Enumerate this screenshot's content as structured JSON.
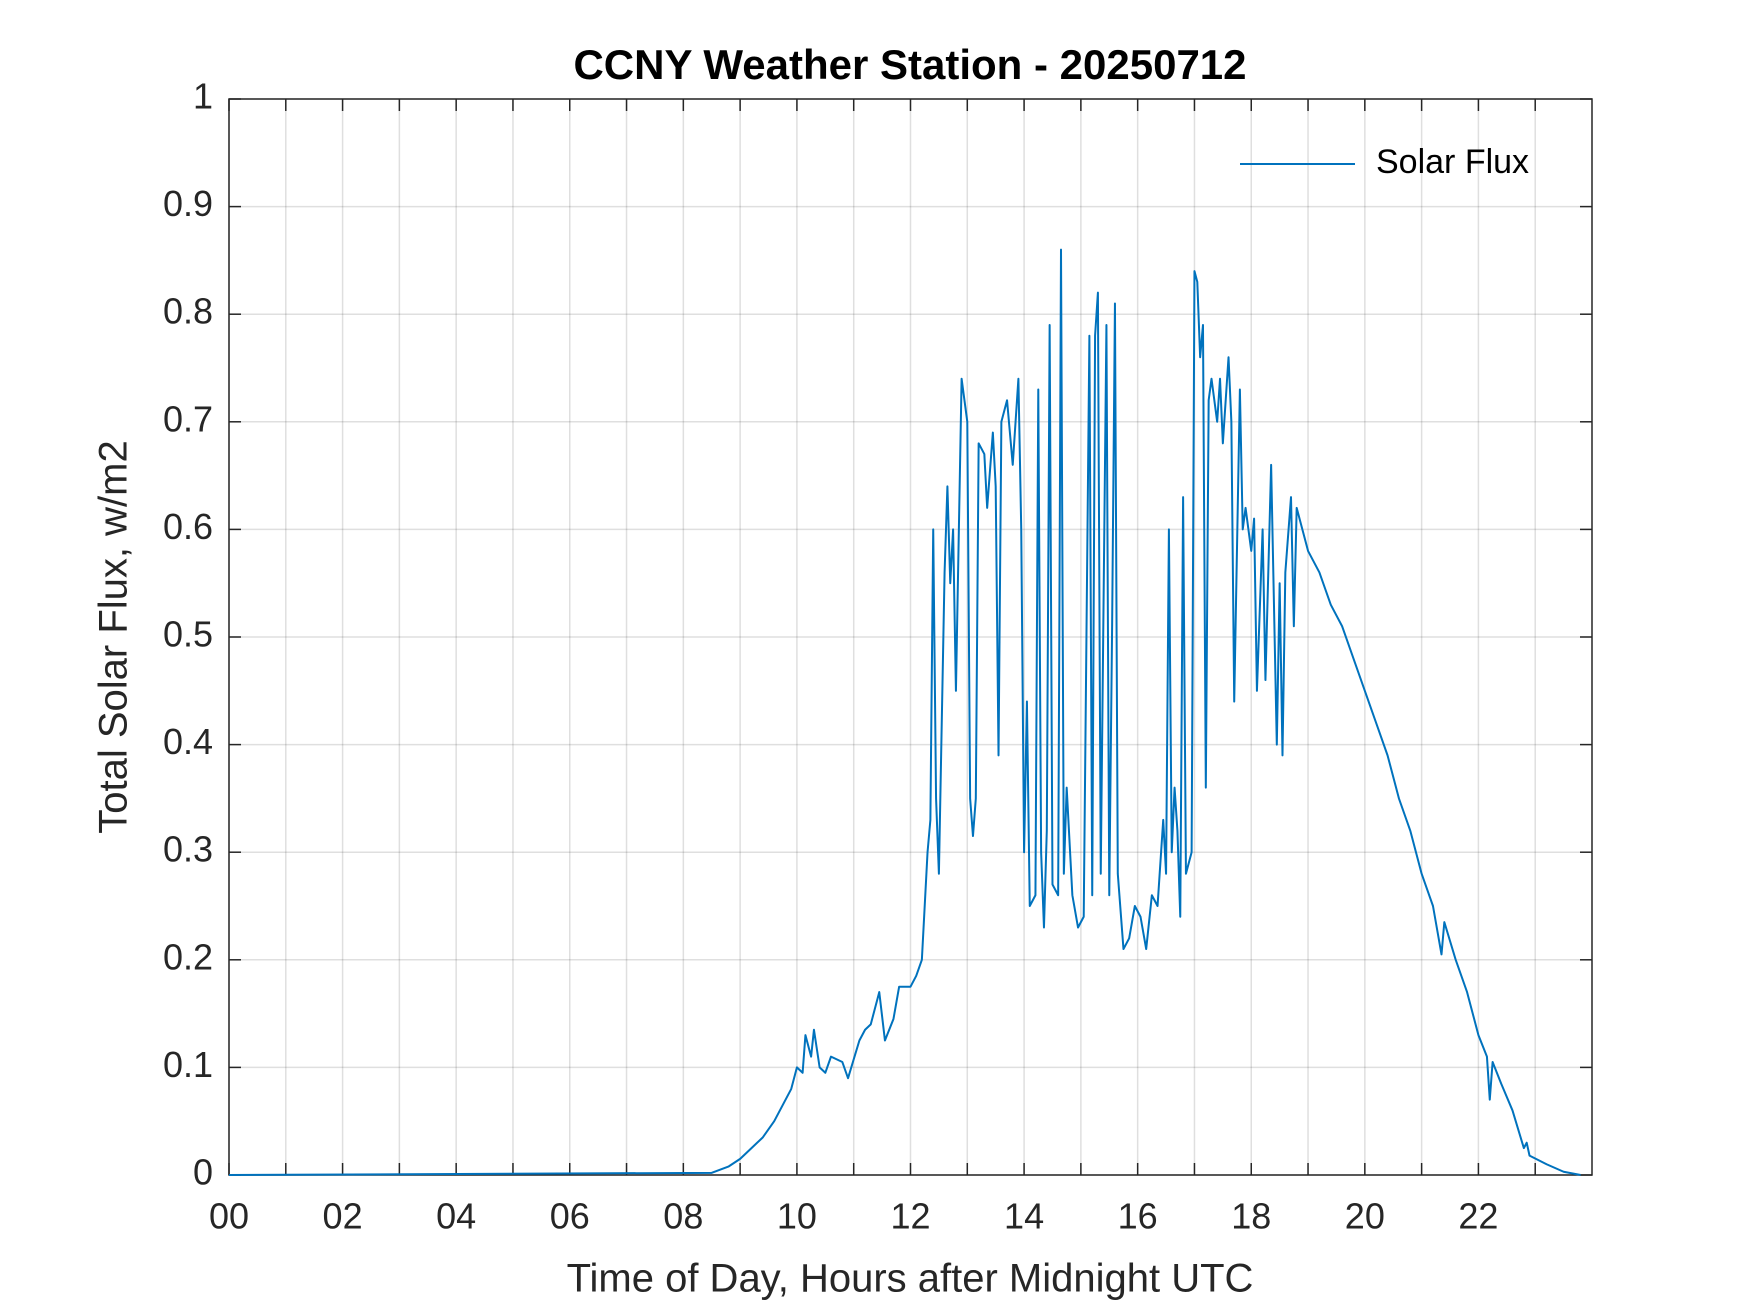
{
  "chart_data": {
    "type": "line",
    "title": "CCNY Weather Station - 20250712",
    "xlabel": "Time of Day, Hours after Midnight UTC",
    "ylabel": "Total Solar Flux, w/m2",
    "x": [
      0,
      8.5,
      8.8,
      9.0,
      9.2,
      9.4,
      9.6,
      9.8,
      9.9,
      10.0,
      10.1,
      10.15,
      10.25,
      10.3,
      10.4,
      10.5,
      10.6,
      10.8,
      10.9,
      11.1,
      11.2,
      11.3,
      11.45,
      11.55,
      11.7,
      11.8,
      12.0,
      12.1,
      12.2,
      12.3,
      12.35,
      12.4,
      12.45,
      12.5,
      12.6,
      12.65,
      12.7,
      12.75,
      12.8,
      12.9,
      13.0,
      13.05,
      13.1,
      13.15,
      13.2,
      13.3,
      13.35,
      13.45,
      13.5,
      13.55,
      13.6,
      13.7,
      13.8,
      13.9,
      13.95,
      14.0,
      14.05,
      14.1,
      14.2,
      14.25,
      14.3,
      14.35,
      14.4,
      14.45,
      14.5,
      14.6,
      14.65,
      14.7,
      14.75,
      14.85,
      14.95,
      15.05,
      15.15,
      15.2,
      15.25,
      15.3,
      15.35,
      15.45,
      15.5,
      15.55,
      15.6,
      15.65,
      15.75,
      15.85,
      15.95,
      16.05,
      16.15,
      16.25,
      16.35,
      16.45,
      16.5,
      16.55,
      16.6,
      16.65,
      16.7,
      16.75,
      16.8,
      16.85,
      16.95,
      17.0,
      17.05,
      17.1,
      17.15,
      17.2,
      17.25,
      17.3,
      17.4,
      17.45,
      17.5,
      17.6,
      17.65,
      17.7,
      17.8,
      17.85,
      17.9,
      18.0,
      18.05,
      18.1,
      18.2,
      18.25,
      18.35,
      18.45,
      18.5,
      18.55,
      18.6,
      18.7,
      18.75,
      18.8,
      18.9,
      19.0,
      19.2,
      19.4,
      19.6,
      19.8,
      20.0,
      20.2,
      20.4,
      20.6,
      20.8,
      21.0,
      21.2,
      21.35,
      21.4,
      21.6,
      21.8,
      22.0,
      22.15,
      22.2,
      22.25,
      22.4,
      22.6,
      22.8,
      22.85,
      22.9,
      23.2,
      23.5,
      23.8
    ],
    "series": [
      {
        "name": "Solar Flux",
        "color": "#0072bd",
        "values": [
          0,
          0.002,
          0.008,
          0.015,
          0.025,
          0.035,
          0.05,
          0.07,
          0.08,
          0.1,
          0.095,
          0.13,
          0.11,
          0.135,
          0.1,
          0.095,
          0.11,
          0.105,
          0.09,
          0.125,
          0.135,
          0.14,
          0.17,
          0.125,
          0.145,
          0.175,
          0.175,
          0.185,
          0.2,
          0.3,
          0.33,
          0.6,
          0.35,
          0.28,
          0.56,
          0.64,
          0.55,
          0.6,
          0.45,
          0.74,
          0.7,
          0.35,
          0.315,
          0.35,
          0.68,
          0.67,
          0.62,
          0.69,
          0.64,
          0.39,
          0.7,
          0.72,
          0.66,
          0.74,
          0.6,
          0.3,
          0.44,
          0.25,
          0.26,
          0.73,
          0.3,
          0.23,
          0.32,
          0.79,
          0.27,
          0.26,
          0.86,
          0.28,
          0.36,
          0.26,
          0.23,
          0.24,
          0.78,
          0.26,
          0.78,
          0.82,
          0.28,
          0.79,
          0.26,
          0.51,
          0.81,
          0.28,
          0.21,
          0.22,
          0.25,
          0.24,
          0.21,
          0.26,
          0.25,
          0.33,
          0.28,
          0.6,
          0.3,
          0.36,
          0.32,
          0.24,
          0.63,
          0.28,
          0.3,
          0.84,
          0.83,
          0.76,
          0.79,
          0.36,
          0.72,
          0.74,
          0.7,
          0.74,
          0.68,
          0.76,
          0.7,
          0.44,
          0.73,
          0.6,
          0.62,
          0.58,
          0.61,
          0.45,
          0.6,
          0.46,
          0.66,
          0.4,
          0.55,
          0.39,
          0.56,
          0.63,
          0.51,
          0.62,
          0.6,
          0.58,
          0.56,
          0.53,
          0.51,
          0.48,
          0.45,
          0.42,
          0.39,
          0.35,
          0.32,
          0.28,
          0.25,
          0.205,
          0.235,
          0.2,
          0.17,
          0.13,
          0.11,
          0.07,
          0.105,
          0.085,
          0.06,
          0.025,
          0.03,
          0.018,
          0.01,
          0.003,
          0
        ]
      }
    ],
    "xlim": [
      0,
      24
    ],
    "xticks": [
      {
        "value": 0,
        "label": "00"
      },
      {
        "value": 2,
        "label": "02"
      },
      {
        "value": 4,
        "label": "04"
      },
      {
        "value": 6,
        "label": "06"
      },
      {
        "value": 8,
        "label": "08"
      },
      {
        "value": 10,
        "label": "10"
      },
      {
        "value": 12,
        "label": "12"
      },
      {
        "value": 14,
        "label": "14"
      },
      {
        "value": 16,
        "label": "16"
      },
      {
        "value": 18,
        "label": "18"
      },
      {
        "value": 20,
        "label": "20"
      },
      {
        "value": 22,
        "label": "22"
      }
    ],
    "xminorticks": [
      1,
      3,
      5,
      7,
      9,
      11,
      13,
      15,
      17,
      19,
      21,
      23
    ],
    "ylim": [
      0,
      1
    ],
    "yticks": [
      0,
      0.1,
      0.2,
      0.3,
      0.4,
      0.5,
      0.6,
      0.7,
      0.8,
      0.9,
      1
    ],
    "grid": true,
    "legend": "upper right"
  }
}
